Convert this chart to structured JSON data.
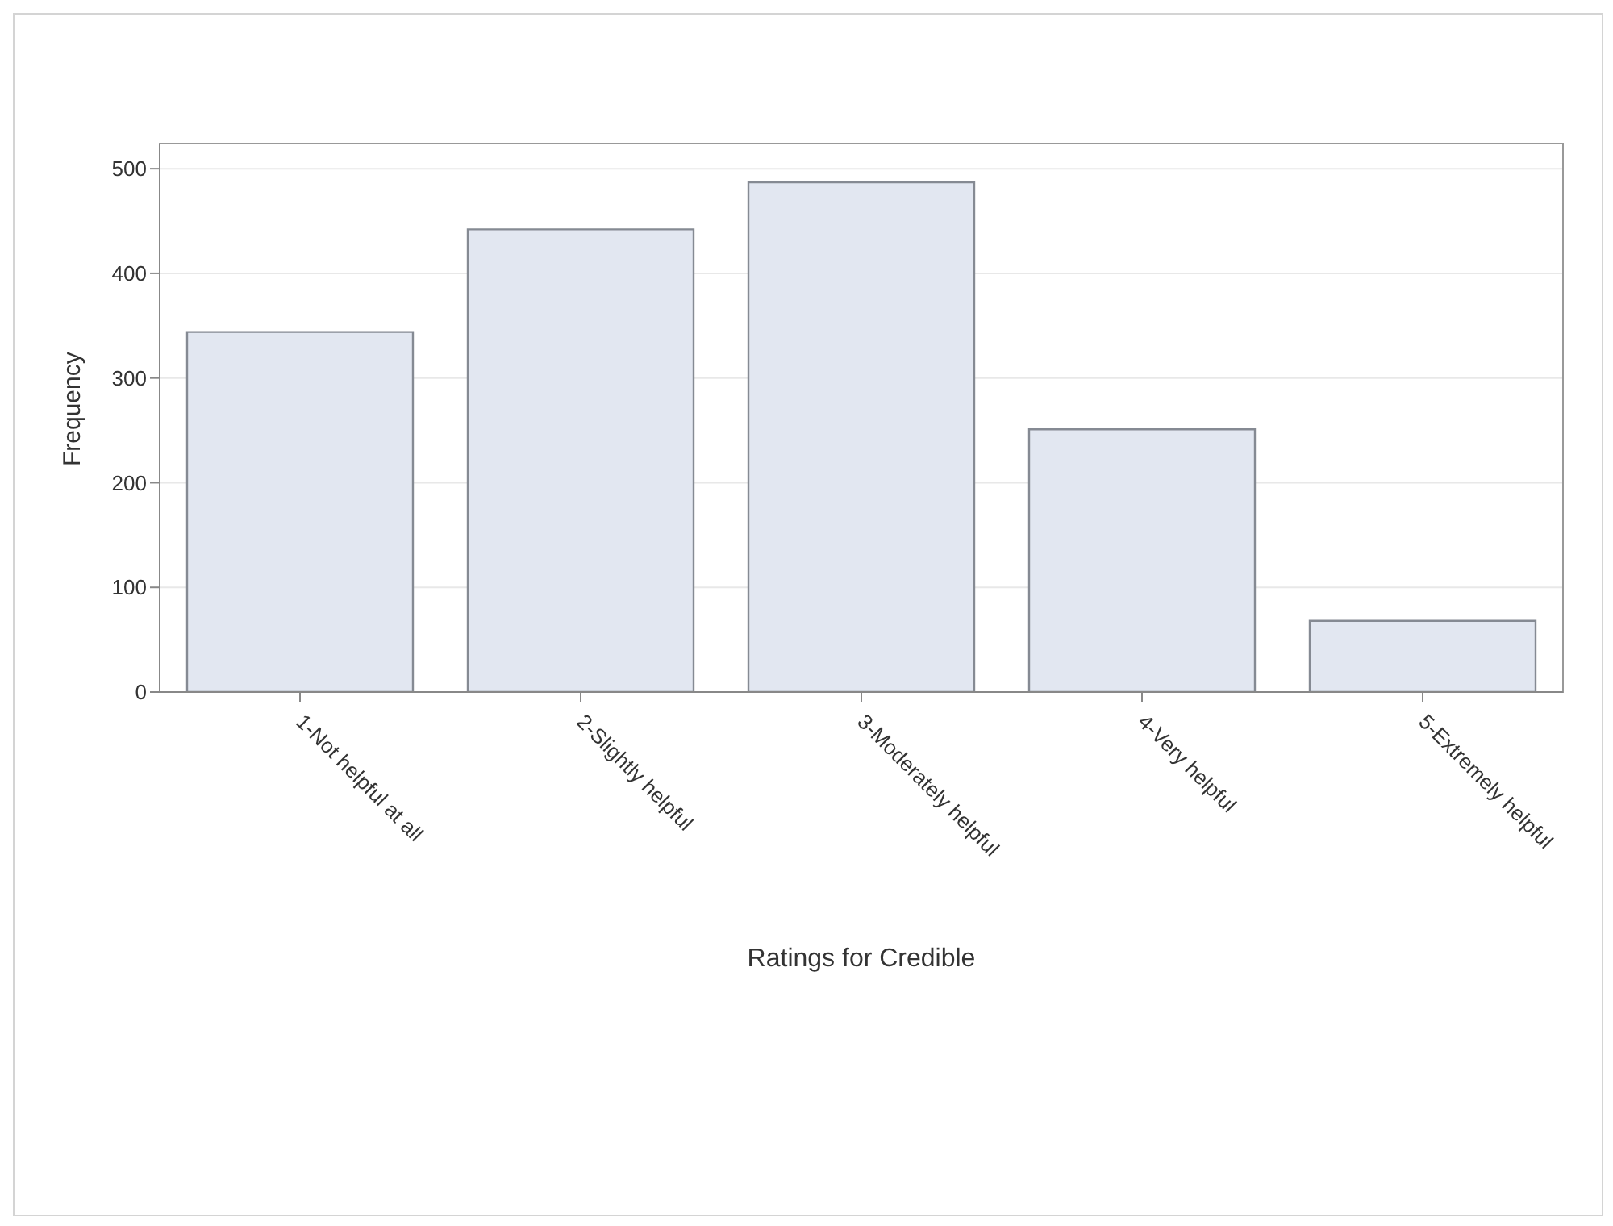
{
  "chart_data": {
    "type": "bar",
    "xlabel": "Ratings for Credible",
    "ylabel": "Frequency",
    "categories": [
      "1-Not helpful at all",
      "2-Slightly helpful",
      "3-Moderately helpful",
      "4-Very helpful",
      "5-Extremely helpful"
    ],
    "values": [
      344,
      442,
      487,
      251,
      68
    ],
    "color": "#e2e7f1",
    "ylim": [
      0,
      524
    ],
    "yticks": [
      0,
      100,
      200,
      300,
      400,
      500
    ],
    "grid": "y"
  }
}
